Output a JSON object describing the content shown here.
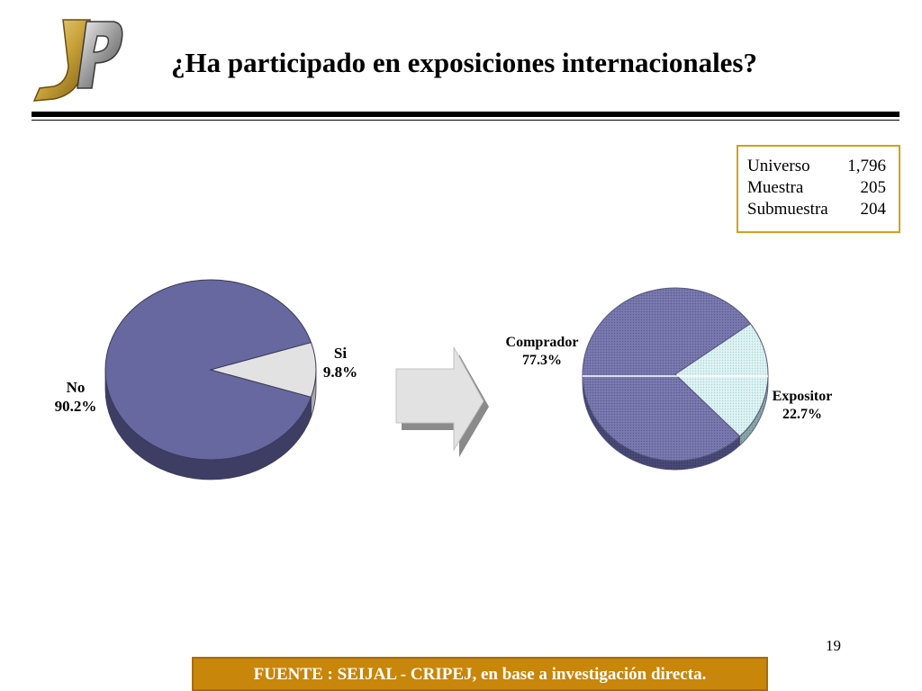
{
  "title": "¿Ha participado en exposiciones internacionales?",
  "logo": {
    "text": "JP",
    "name": "jp-logo"
  },
  "sample": [
    {
      "label": "Universo",
      "value": "1,796"
    },
    {
      "label": "Muestra",
      "value": "205"
    },
    {
      "label": "Submuestra",
      "value": "204"
    }
  ],
  "page_number": "19",
  "source_note": "FUENTE :  SEIJAL - CRIPEJ,  en base a investigación directa.",
  "colors": {
    "primary": "#6a6aa0",
    "secondary": "#e4e4e4",
    "secondary_teal": "#d4eeee",
    "accent": "#c8860a"
  },
  "chart_data": [
    {
      "type": "pie",
      "title": "",
      "slices": [
        {
          "label": "No",
          "value": 90.2,
          "display": "90.2%"
        },
        {
          "label": "Si",
          "value": 9.8,
          "display": "9.8%"
        }
      ]
    },
    {
      "type": "pie",
      "title": "",
      "slices": [
        {
          "label": "Comprador",
          "value": 77.3,
          "display": "77.3%"
        },
        {
          "label": "Expositor",
          "value": 22.7,
          "display": "22.7%"
        }
      ]
    }
  ]
}
